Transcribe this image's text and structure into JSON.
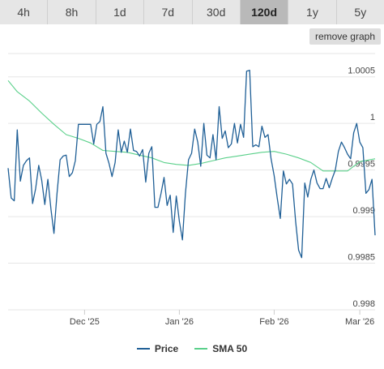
{
  "range_tabs": [
    {
      "label": "4h",
      "active": false
    },
    {
      "label": "8h",
      "active": false
    },
    {
      "label": "1d",
      "active": false
    },
    {
      "label": "7d",
      "active": false
    },
    {
      "label": "30d",
      "active": false
    },
    {
      "label": "120d",
      "active": true
    },
    {
      "label": "1y",
      "active": false
    },
    {
      "label": "5y",
      "active": false
    }
  ],
  "remove_graph_label": "remove graph",
  "colors": {
    "price": "#1f5f96",
    "sma": "#5ad08a",
    "grid": "#e6e6e6",
    "active_tab": "#b9b9b9"
  },
  "chart_data": {
    "type": "line",
    "title": "",
    "xlabel": "",
    "ylabel": "",
    "ylim": [
      0.998,
      1.00075
    ],
    "y_ticks": [
      0.998,
      0.9985,
      0.999,
      0.9995,
      1,
      1.0005
    ],
    "y_tick_labels": [
      "0.998",
      "0.9985",
      "0.999",
      "0.9995",
      "1",
      "1.0005"
    ],
    "x_range": [
      "2025-11-06",
      "2026-03-06"
    ],
    "x_ticks": [
      {
        "date": "2025-12-01",
        "label": "Dec '25"
      },
      {
        "date": "2026-01-01",
        "label": "Jan '26"
      },
      {
        "date": "2026-02-01",
        "label": "Feb '26"
      },
      {
        "date": "2026-03-01",
        "label": "Mar '26"
      }
    ],
    "grid": true,
    "legend_position": "bottom",
    "series": [
      {
        "name": "Price",
        "x": [
          "2025-11-06",
          "2025-11-07",
          "2025-11-08",
          "2025-11-09",
          "2025-11-10",
          "2025-11-11",
          "2025-11-12",
          "2025-11-13",
          "2025-11-14",
          "2025-11-15",
          "2025-11-16",
          "2025-11-17",
          "2025-11-18",
          "2025-11-19",
          "2025-11-20",
          "2025-11-21",
          "2025-11-22",
          "2025-11-23",
          "2025-11-24",
          "2025-11-25",
          "2025-11-26",
          "2025-11-27",
          "2025-11-28",
          "2025-11-29",
          "2025-11-30",
          "2025-12-01",
          "2025-12-02",
          "2025-12-03",
          "2025-12-04",
          "2025-12-05",
          "2025-12-06",
          "2025-12-07",
          "2025-12-08",
          "2025-12-09",
          "2025-12-10",
          "2025-12-11",
          "2025-12-12",
          "2025-12-13",
          "2025-12-14",
          "2025-12-15",
          "2025-12-16",
          "2025-12-17",
          "2025-12-18",
          "2025-12-19",
          "2025-12-20",
          "2025-12-21",
          "2025-12-22",
          "2025-12-23",
          "2025-12-24",
          "2025-12-25",
          "2025-12-26",
          "2025-12-27",
          "2025-12-28",
          "2025-12-29",
          "2025-12-30",
          "2025-12-31",
          "2026-01-01",
          "2026-01-02",
          "2026-01-03",
          "2026-01-04",
          "2026-01-05",
          "2026-01-06",
          "2026-01-07",
          "2026-01-08",
          "2026-01-09",
          "2026-01-10",
          "2026-01-11",
          "2026-01-12",
          "2026-01-13",
          "2026-01-14",
          "2026-01-15",
          "2026-01-16",
          "2026-01-17",
          "2026-01-18",
          "2026-01-19",
          "2026-01-20",
          "2026-01-21",
          "2026-01-22",
          "2026-01-23",
          "2026-01-24",
          "2026-01-25",
          "2026-01-26",
          "2026-01-27",
          "2026-01-28",
          "2026-01-29",
          "2026-01-30",
          "2026-01-31",
          "2026-02-01",
          "2026-02-02",
          "2026-02-03",
          "2026-02-04",
          "2026-02-05",
          "2026-02-06",
          "2026-02-07",
          "2026-02-08",
          "2026-02-09",
          "2026-02-10",
          "2026-02-11",
          "2026-02-12",
          "2026-02-13",
          "2026-02-14",
          "2026-02-15",
          "2026-02-16",
          "2026-02-17",
          "2026-02-18",
          "2026-02-19",
          "2026-02-20",
          "2026-02-21",
          "2026-02-22",
          "2026-02-23",
          "2026-02-24",
          "2026-02-25",
          "2026-02-26",
          "2026-02-27",
          "2026-02-28",
          "2026-03-01",
          "2026-03-02",
          "2026-03-03",
          "2026-03-04",
          "2026-03-05",
          "2026-03-06"
        ],
        "y": [
          0.99952,
          0.9992,
          0.99917,
          0.99993,
          0.99938,
          0.99955,
          0.9996,
          0.99963,
          0.99914,
          0.9993,
          0.99955,
          0.99939,
          0.99913,
          0.9994,
          0.99908,
          0.99882,
          0.99925,
          0.99961,
          0.99965,
          0.99966,
          0.99943,
          0.99947,
          0.9996,
          0.99999,
          0.99999,
          0.99999,
          0.99999,
          0.99999,
          0.99978,
          0.99999,
          1.00002,
          1.00018,
          0.99968,
          0.99957,
          0.99943,
          0.99958,
          0.99993,
          0.99969,
          0.99981,
          0.99969,
          0.99994,
          0.99971,
          0.9997,
          0.99965,
          0.99972,
          0.99937,
          0.99968,
          0.99975,
          0.9991,
          0.9991,
          0.99925,
          0.99942,
          0.99912,
          0.99923,
          0.99883,
          0.99922,
          0.99895,
          0.99875,
          0.99925,
          0.99961,
          0.99968,
          0.99994,
          0.9998,
          0.99954,
          1.0,
          0.99966,
          0.99963,
          0.99988,
          0.99961,
          1.00018,
          0.99984,
          0.99992,
          0.99974,
          0.99978,
          1.0,
          0.99979,
          0.99999,
          0.99985,
          1.00056,
          1.00057,
          0.99975,
          0.99977,
          0.99975,
          0.99997,
          0.99985,
          0.99988,
          0.99962,
          0.99944,
          0.9992,
          0.99898,
          0.99949,
          0.99935,
          0.9994,
          0.99935,
          0.99895,
          0.99864,
          0.99856,
          0.99936,
          0.99921,
          0.9994,
          0.9995,
          0.99936,
          0.9993,
          0.9993,
          0.99941,
          0.99931,
          0.99941,
          0.9995,
          0.9997,
          0.9998,
          0.99974,
          0.99967,
          0.99962,
          0.9999,
          1.0,
          0.9998,
          0.99974,
          0.99925,
          0.99929,
          0.9994,
          0.9988
        ]
      },
      {
        "name": "SMA 50",
        "x": [
          "2025-11-06",
          "2025-11-09",
          "2025-11-13",
          "2025-11-17",
          "2025-11-21",
          "2025-11-25",
          "2025-11-29",
          "2025-12-03",
          "2025-12-07",
          "2025-12-11",
          "2025-12-15",
          "2025-12-19",
          "2025-12-23",
          "2025-12-27",
          "2025-12-31",
          "2026-01-04",
          "2026-01-08",
          "2026-01-12",
          "2026-01-16",
          "2026-01-20",
          "2026-01-24",
          "2026-01-28",
          "2026-02-01",
          "2026-02-05",
          "2026-02-09",
          "2026-02-13",
          "2026-02-17",
          "2026-02-21",
          "2026-02-25",
          "2026-03-01",
          "2026-03-06"
        ],
        "y": [
          1.00046,
          1.00034,
          1.00024,
          1.00011,
          0.99999,
          0.99988,
          0.99984,
          0.99979,
          0.99971,
          0.9997,
          0.99969,
          0.99966,
          0.99963,
          0.99958,
          0.99956,
          0.99955,
          0.99957,
          0.9996,
          0.99963,
          0.99965,
          0.99967,
          0.99969,
          0.9997,
          0.99967,
          0.99963,
          0.99958,
          0.99949,
          0.99949,
          0.99949,
          0.99959,
          0.99962
        ]
      }
    ]
  }
}
